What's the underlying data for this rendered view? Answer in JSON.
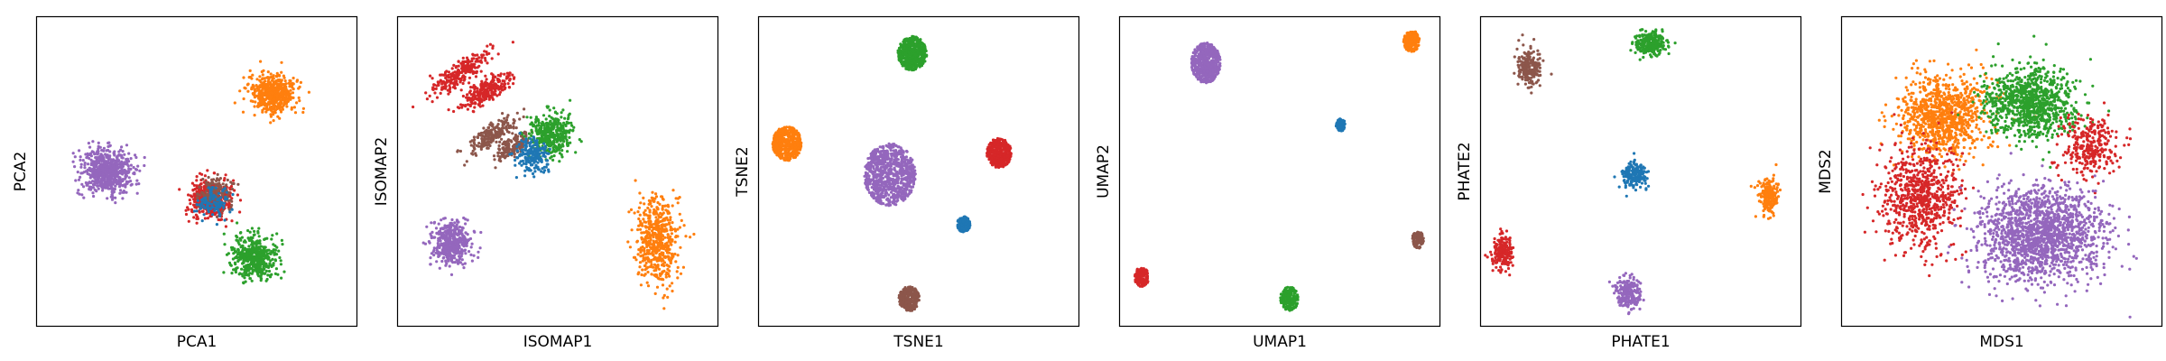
{
  "colors": {
    "blue": "#1f77b4",
    "orange": "#ff7f0e",
    "green": "#2ca02c",
    "red": "#d62728",
    "purple": "#9467bd",
    "brown": "#8c564b"
  },
  "chart_data": [
    {
      "type": "scatter",
      "xlabel": "PCA1",
      "ylabel": "PCA2",
      "xlim": [
        0,
        100
      ],
      "ylim": [
        0,
        100
      ],
      "ticks": "hidden",
      "grid": false,
      "clusters": [
        {
          "color": "purple",
          "center": [
            22,
            50
          ],
          "spread": [
            8,
            7
          ],
          "shape": "ellipse",
          "n": 700
        },
        {
          "color": "red",
          "center": [
            54,
            41
          ],
          "spread": [
            6,
            6
          ],
          "shape": "ellipse",
          "n": 500
        },
        {
          "color": "green",
          "center": [
            68,
            22
          ],
          "spread": [
            7,
            7
          ],
          "shape": "ellipse",
          "n": 500
        },
        {
          "color": "orange",
          "center": [
            74,
            75
          ],
          "spread": [
            7,
            6
          ],
          "shape": "ellipse",
          "n": 550
        },
        {
          "color": "brown",
          "center": [
            56,
            43
          ],
          "spread": [
            5,
            5
          ],
          "shape": "ellipse",
          "n": 150
        },
        {
          "color": "blue",
          "center": [
            55,
            40
          ],
          "spread": [
            5,
            5
          ],
          "shape": "ellipse",
          "n": 100
        }
      ]
    },
    {
      "type": "scatter",
      "xlabel": "ISOMAP1",
      "ylabel": "ISOMAP2",
      "xlim": [
        0,
        100
      ],
      "ylim": [
        0,
        100
      ],
      "ticks": "hidden",
      "grid": false,
      "clusters": [
        {
          "color": "red",
          "center": [
            20,
            82
          ],
          "spread": [
            10,
            3
          ],
          "shape": "streak",
          "n": 250
        },
        {
          "color": "red",
          "center": [
            28,
            76
          ],
          "spread": [
            9,
            3
          ],
          "shape": "streak",
          "n": 250
        },
        {
          "color": "brown",
          "center": [
            30,
            62
          ],
          "spread": [
            8,
            3
          ],
          "shape": "streak",
          "n": 200
        },
        {
          "color": "brown",
          "center": [
            36,
            58
          ],
          "spread": [
            6,
            3
          ],
          "shape": "streak",
          "n": 150
        },
        {
          "color": "green",
          "center": [
            48,
            62
          ],
          "spread": [
            7,
            7
          ],
          "shape": "ellipse",
          "n": 400
        },
        {
          "color": "blue",
          "center": [
            42,
            55
          ],
          "spread": [
            5,
            5
          ],
          "shape": "ellipse",
          "n": 200
        },
        {
          "color": "purple",
          "center": [
            17,
            27
          ],
          "spread": [
            6,
            7
          ],
          "shape": "ellipse",
          "n": 450
        },
        {
          "color": "orange",
          "center": [
            81,
            28
          ],
          "spread": [
            6,
            14
          ],
          "shape": "ellipse",
          "n": 550
        }
      ]
    },
    {
      "type": "scatter",
      "xlabel": "TSNE1",
      "ylabel": "TSNE2",
      "xlim": [
        0,
        100
      ],
      "ylim": [
        0,
        100
      ],
      "ticks": "hidden",
      "grid": false,
      "clusters": [
        {
          "color": "green",
          "center": [
            48,
            88
          ],
          "spread": [
            4.5,
            5.5
          ],
          "shape": "blob",
          "n": 500
        },
        {
          "color": "orange",
          "center": [
            9,
            59
          ],
          "spread": [
            4.5,
            5.5
          ],
          "shape": "blob",
          "n": 450
        },
        {
          "color": "purple",
          "center": [
            41,
            49
          ],
          "spread": [
            8,
            10
          ],
          "shape": "blob",
          "n": 800
        },
        {
          "color": "red",
          "center": [
            75,
            56
          ],
          "spread": [
            3.8,
            4.8
          ],
          "shape": "blob",
          "n": 350
        },
        {
          "color": "blue",
          "center": [
            64,
            33
          ],
          "spread": [
            2,
            2.5
          ],
          "shape": "blob",
          "n": 150
        },
        {
          "color": "brown",
          "center": [
            47,
            9
          ],
          "spread": [
            3.2,
            4
          ],
          "shape": "blob",
          "n": 280
        }
      ]
    },
    {
      "type": "scatter",
      "xlabel": "UMAP1",
      "ylabel": "UMAP2",
      "xlim": [
        0,
        100
      ],
      "ylim": [
        0,
        100
      ],
      "ticks": "hidden",
      "grid": false,
      "clusters": [
        {
          "color": "purple",
          "center": [
            27,
            85
          ],
          "spread": [
            4.5,
            6.5
          ],
          "shape": "blob",
          "n": 500
        },
        {
          "color": "orange",
          "center": [
            91,
            92
          ],
          "spread": [
            2.5,
            3.5
          ],
          "shape": "blob",
          "n": 200
        },
        {
          "color": "blue",
          "center": [
            69,
            65
          ],
          "spread": [
            1.5,
            2
          ],
          "shape": "blob",
          "n": 80
        },
        {
          "color": "brown",
          "center": [
            93,
            28
          ],
          "spread": [
            1.8,
            2.8
          ],
          "shape": "blob",
          "n": 120
        },
        {
          "color": "red",
          "center": [
            7,
            16
          ],
          "spread": [
            2.2,
            3.2
          ],
          "shape": "blob",
          "n": 150
        },
        {
          "color": "green",
          "center": [
            53,
            9
          ],
          "spread": [
            2.8,
            3.8
          ],
          "shape": "blob",
          "n": 200
        }
      ]
    },
    {
      "type": "scatter",
      "xlabel": "PHATE1",
      "ylabel": "PHATE2",
      "xlim": [
        0,
        100
      ],
      "ylim": [
        0,
        100
      ],
      "ticks": "hidden",
      "grid": false,
      "clusters": [
        {
          "color": "brown",
          "center": [
            15,
            84
          ],
          "spread": [
            4,
            6
          ],
          "shape": "ellipse",
          "n": 200
        },
        {
          "color": "green",
          "center": [
            53,
            91
          ],
          "spread": [
            5,
            4
          ],
          "shape": "ellipse",
          "n": 250
        },
        {
          "color": "blue",
          "center": [
            48,
            49
          ],
          "spread": [
            4,
            4
          ],
          "shape": "ellipse",
          "n": 200
        },
        {
          "color": "orange",
          "center": [
            90,
            42
          ],
          "spread": [
            3,
            6
          ],
          "shape": "ellipse",
          "n": 220
        },
        {
          "color": "red",
          "center": [
            7,
            24
          ],
          "spread": [
            3,
            5
          ],
          "shape": "ellipse",
          "n": 200
        },
        {
          "color": "purple",
          "center": [
            46,
            11
          ],
          "spread": [
            4,
            5
          ],
          "shape": "ellipse",
          "n": 220
        }
      ]
    },
    {
      "type": "scatter",
      "xlabel": "MDS1",
      "ylabel": "MDS2",
      "xlim": [
        0,
        100
      ],
      "ylim": [
        0,
        100
      ],
      "ticks": "hidden",
      "grid": false,
      "clusters": [
        {
          "color": "orange",
          "center": [
            32,
            68
          ],
          "spread": [
            14,
            13
          ],
          "shape": "ellipse",
          "n": 900
        },
        {
          "color": "green",
          "center": [
            59,
            72
          ],
          "spread": [
            14,
            11
          ],
          "shape": "ellipse",
          "n": 900
        },
        {
          "color": "red",
          "center": [
            25,
            42
          ],
          "spread": [
            12,
            17
          ],
          "shape": "ellipse",
          "n": 700
        },
        {
          "color": "red",
          "center": [
            77,
            58
          ],
          "spread": [
            9,
            9
          ],
          "shape": "ellipse",
          "n": 300
        },
        {
          "color": "purple",
          "center": [
            62,
            30
          ],
          "spread": [
            19,
            15
          ],
          "shape": "ellipse",
          "n": 1600
        }
      ]
    }
  ]
}
